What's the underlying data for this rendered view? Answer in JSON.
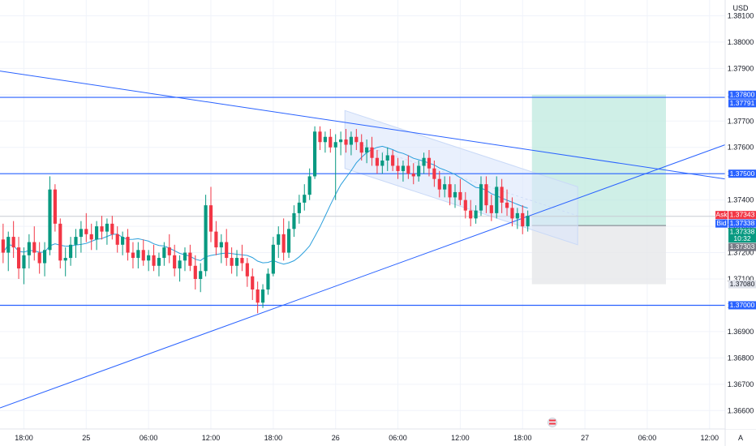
{
  "currency": "USD",
  "axis_letter": "A",
  "colors": {
    "up": "#089981",
    "down": "#f23645",
    "line": "#2962ff",
    "ma": "#2b9fdc",
    "grid": "#f0f3fa",
    "channel": "#c9d9f7",
    "profit": "#bfe9df",
    "loss": "#e6e7ea"
  },
  "price_badges": [
    {
      "prefix": "",
      "value": "1.37800",
      "color": "#2962ff"
    },
    {
      "prefix": "",
      "value": "1.37791",
      "color": "#2962ff"
    },
    {
      "prefix": "",
      "value": "1.37500",
      "color": "#2962ff"
    },
    {
      "prefix": "Ask",
      "value": "1.37343",
      "color": "#f23645"
    },
    {
      "prefix": "Bid",
      "value": "1.37338",
      "color": "#2962ff"
    },
    {
      "prefix": "",
      "value": "1.37338",
      "sub": "10:32",
      "color": "#089981"
    },
    {
      "prefix": "",
      "value": "1.37303",
      "color": "#787b86"
    },
    {
      "prefix": "",
      "value": "1.37080",
      "color": "#e0e3eb",
      "text_color": "#131722"
    },
    {
      "prefix": "",
      "value": "1.37000",
      "color": "#2962ff"
    }
  ],
  "chart_data": {
    "type": "candlestick",
    "symbol_quote": "USD",
    "y_ticks": [
      "1.38100",
      "1.38000",
      "1.37900",
      "1.37800",
      "1.37700",
      "1.37600",
      "1.37500",
      "1.37400",
      "1.37300",
      "1.37200",
      "1.37100",
      "1.37000",
      "1.36900",
      "1.36800",
      "1.36700",
      "1.36600"
    ],
    "x_ticks": [
      "18:00",
      "25",
      "06:00",
      "12:00",
      "18:00",
      "26",
      "06:00",
      "12:00",
      "18:00",
      "27",
      "06:00",
      "12:00"
    ],
    "ylim": [
      1.3653,
      1.3816
    ],
    "x_hours_range": [
      -8.3,
      61.5
    ],
    "x_tick_hours": [
      -6,
      0,
      6,
      12,
      18,
      24,
      30,
      36,
      42,
      48,
      54,
      60
    ],
    "horizontal_levels": [
      1.3779,
      1.375,
      1.37
    ],
    "trendlines": [
      {
        "from": [
          -8.3,
          1.3789
        ],
        "to": [
          61.5,
          1.3748
        ]
      },
      {
        "from": [
          -8.3,
          1.3661
        ],
        "to": [
          61.5,
          1.3761
        ]
      }
    ],
    "channel": {
      "upper": [
        [
          24.9,
          1.3774
        ],
        [
          47.3,
          1.3745
        ]
      ],
      "lower": [
        [
          24.9,
          1.3752
        ],
        [
          47.3,
          1.3723
        ]
      ]
    },
    "position": {
      "hour_from": 42.9,
      "hour_to": 55.8,
      "entry": 1.37303,
      "target": 1.378,
      "stop": 1.3708
    },
    "candles": [
      [
        -8.0,
        1.3725,
        1.3731,
        1.3716,
        1.372
      ],
      [
        -7.5,
        1.372,
        1.3728,
        1.3713,
        1.3726
      ],
      [
        -7.0,
        1.3726,
        1.3732,
        1.3718,
        1.3722
      ],
      [
        -6.5,
        1.3722,
        1.3726,
        1.371,
        1.3714
      ],
      [
        -6.0,
        1.3714,
        1.3722,
        1.3708,
        1.3719
      ],
      [
        -5.5,
        1.3719,
        1.3727,
        1.3714,
        1.3724
      ],
      [
        -5.0,
        1.3724,
        1.373,
        1.3717,
        1.372
      ],
      [
        -4.5,
        1.372,
        1.3724,
        1.3712,
        1.3716
      ],
      [
        -4.0,
        1.3716,
        1.3724,
        1.3711,
        1.3721
      ],
      [
        -3.5,
        1.3721,
        1.3749,
        1.3719,
        1.3744
      ],
      [
        -3.0,
        1.3744,
        1.3746,
        1.3728,
        1.3731
      ],
      [
        -2.5,
        1.3731,
        1.3733,
        1.3714,
        1.3717
      ],
      [
        -2.0,
        1.3717,
        1.3722,
        1.3711,
        1.3718
      ],
      [
        -1.5,
        1.3718,
        1.3726,
        1.3715,
        1.3723
      ],
      [
        -1.0,
        1.3723,
        1.3729,
        1.3718,
        1.3726
      ],
      [
        -0.5,
        1.3726,
        1.3732,
        1.372,
        1.3729
      ],
      [
        0.0,
        1.3729,
        1.3735,
        1.3724,
        1.3727
      ],
      [
        0.5,
        1.3727,
        1.3731,
        1.3721,
        1.3725
      ],
      [
        1.0,
        1.3725,
        1.3732,
        1.3721,
        1.373
      ],
      [
        1.5,
        1.373,
        1.3734,
        1.3725,
        1.3728
      ],
      [
        2.0,
        1.3728,
        1.3733,
        1.3723,
        1.3731
      ],
      [
        2.5,
        1.3731,
        1.3734,
        1.3725,
        1.3727
      ],
      [
        3.0,
        1.3727,
        1.373,
        1.372,
        1.3723
      ],
      [
        3.5,
        1.3723,
        1.3728,
        1.3719,
        1.3726
      ],
      [
        4.0,
        1.3726,
        1.3729,
        1.3717,
        1.372
      ],
      [
        4.5,
        1.372,
        1.3724,
        1.3714,
        1.3718
      ],
      [
        5.0,
        1.3718,
        1.3724,
        1.3714,
        1.3721
      ],
      [
        5.5,
        1.3721,
        1.3725,
        1.3715,
        1.3717
      ],
      [
        6.0,
        1.3717,
        1.3721,
        1.3713,
        1.3719
      ],
      [
        6.5,
        1.3719,
        1.3723,
        1.3713,
        1.3715
      ],
      [
        7.0,
        1.3715,
        1.372,
        1.3711,
        1.3718
      ],
      [
        7.5,
        1.3718,
        1.3724,
        1.3715,
        1.3722
      ],
      [
        8.0,
        1.3722,
        1.3727,
        1.3716,
        1.3719
      ],
      [
        8.5,
        1.3719,
        1.3723,
        1.3711,
        1.3714
      ],
      [
        9.0,
        1.3714,
        1.3719,
        1.3709,
        1.3717
      ],
      [
        9.5,
        1.3717,
        1.3722,
        1.3713,
        1.372
      ],
      [
        10.0,
        1.372,
        1.3723,
        1.3713,
        1.3715
      ],
      [
        10.5,
        1.3715,
        1.3719,
        1.3706,
        1.371
      ],
      [
        11.0,
        1.371,
        1.3716,
        1.3705,
        1.3713
      ],
      [
        11.5,
        1.3713,
        1.3742,
        1.3711,
        1.3738
      ],
      [
        12.0,
        1.3738,
        1.3745,
        1.3724,
        1.3728
      ],
      [
        12.5,
        1.3728,
        1.3732,
        1.3719,
        1.3722
      ],
      [
        13.0,
        1.3722,
        1.3727,
        1.3716,
        1.3724
      ],
      [
        13.5,
        1.3724,
        1.3729,
        1.3715,
        1.3718
      ],
      [
        14.0,
        1.3718,
        1.3722,
        1.3712,
        1.3715
      ],
      [
        14.5,
        1.3715,
        1.3721,
        1.3711,
        1.3718
      ],
      [
        15.0,
        1.3718,
        1.3723,
        1.3713,
        1.3716
      ],
      [
        15.5,
        1.3716,
        1.3718,
        1.3707,
        1.3711
      ],
      [
        16.0,
        1.3711,
        1.3714,
        1.3702,
        1.3706
      ],
      [
        16.5,
        1.3706,
        1.3709,
        1.3697,
        1.3701
      ],
      [
        17.0,
        1.3701,
        1.3708,
        1.3699,
        1.3706
      ],
      [
        17.5,
        1.3706,
        1.3714,
        1.3704,
        1.3712
      ],
      [
        18.0,
        1.3712,
        1.3726,
        1.3711,
        1.3723
      ],
      [
        18.5,
        1.3723,
        1.373,
        1.3718,
        1.3727
      ],
      [
        19.0,
        1.3727,
        1.3733,
        1.3717,
        1.372
      ],
      [
        19.5,
        1.372,
        1.3732,
        1.3718,
        1.3729
      ],
      [
        20.0,
        1.3729,
        1.3738,
        1.3726,
        1.3735
      ],
      [
        20.5,
        1.3735,
        1.3742,
        1.3731,
        1.3739
      ],
      [
        21.0,
        1.3739,
        1.3746,
        1.3736,
        1.3742
      ],
      [
        21.5,
        1.3742,
        1.3752,
        1.374,
        1.3749
      ],
      [
        22.0,
        1.3749,
        1.3768,
        1.3748,
        1.3766
      ],
      [
        22.5,
        1.3766,
        1.3768,
        1.3759,
        1.3762
      ],
      [
        23.0,
        1.3762,
        1.3766,
        1.3758,
        1.3764
      ],
      [
        23.5,
        1.3764,
        1.3767,
        1.3758,
        1.376
      ],
      [
        24.0,
        1.376,
        1.3765,
        1.374,
        1.3762
      ],
      [
        24.5,
        1.3762,
        1.3766,
        1.3757,
        1.3763
      ],
      [
        25.0,
        1.3763,
        1.3767,
        1.3758,
        1.3761
      ],
      [
        25.5,
        1.3761,
        1.3766,
        1.3757,
        1.3764
      ],
      [
        26.0,
        1.3764,
        1.3767,
        1.3759,
        1.3762
      ],
      [
        26.5,
        1.3762,
        1.3765,
        1.3755,
        1.3758
      ],
      [
        27.0,
        1.3758,
        1.3763,
        1.3754,
        1.376
      ],
      [
        27.5,
        1.376,
        1.3764,
        1.3753,
        1.3756
      ],
      [
        28.0,
        1.3756,
        1.3759,
        1.375,
        1.3753
      ],
      [
        28.5,
        1.3753,
        1.3758,
        1.375,
        1.3755
      ],
      [
        29.0,
        1.3755,
        1.376,
        1.3751,
        1.3757
      ],
      [
        29.5,
        1.3757,
        1.3759,
        1.3751,
        1.3753
      ],
      [
        30.0,
        1.3753,
        1.3756,
        1.3748,
        1.3751
      ],
      [
        30.5,
        1.3751,
        1.3755,
        1.3747,
        1.3753
      ],
      [
        31.0,
        1.3753,
        1.3757,
        1.3748,
        1.375
      ],
      [
        31.5,
        1.375,
        1.3754,
        1.3746,
        1.3749
      ],
      [
        32.0,
        1.3749,
        1.3755,
        1.3747,
        1.3753
      ],
      [
        32.5,
        1.3753,
        1.3758,
        1.375,
        1.3756
      ],
      [
        33.0,
        1.3756,
        1.3759,
        1.3749,
        1.3752
      ],
      [
        33.5,
        1.3752,
        1.3755,
        1.3745,
        1.3748
      ],
      [
        34.0,
        1.3748,
        1.3751,
        1.3741,
        1.3744
      ],
      [
        34.5,
        1.3744,
        1.3749,
        1.3741,
        1.3746
      ],
      [
        35.0,
        1.3746,
        1.3749,
        1.3738,
        1.3741
      ],
      [
        35.5,
        1.3741,
        1.3746,
        1.3737,
        1.3743
      ],
      [
        36.0,
        1.3743,
        1.3748,
        1.3738,
        1.374
      ],
      [
        36.5,
        1.374,
        1.3743,
        1.3733,
        1.3736
      ],
      [
        37.0,
        1.3736,
        1.374,
        1.373,
        1.3733
      ],
      [
        37.5,
        1.3733,
        1.3738,
        1.3731,
        1.3736
      ],
      [
        38.0,
        1.3736,
        1.3749,
        1.3734,
        1.3746
      ],
      [
        38.5,
        1.3746,
        1.3749,
        1.3735,
        1.3738
      ],
      [
        39.0,
        1.3738,
        1.3742,
        1.3732,
        1.3735
      ],
      [
        39.5,
        1.3735,
        1.3749,
        1.3733,
        1.3745
      ],
      [
        40.0,
        1.3745,
        1.3748,
        1.3735,
        1.3739
      ],
      [
        40.5,
        1.3739,
        1.3744,
        1.3734,
        1.3737
      ],
      [
        41.0,
        1.3737,
        1.3741,
        1.373,
        1.3733
      ],
      [
        41.5,
        1.3733,
        1.3737,
        1.3729,
        1.3735
      ],
      [
        42.0,
        1.3735,
        1.3738,
        1.3727,
        1.373
      ],
      [
        42.5,
        1.373,
        1.3736,
        1.3728,
        1.3734
      ]
    ]
  }
}
